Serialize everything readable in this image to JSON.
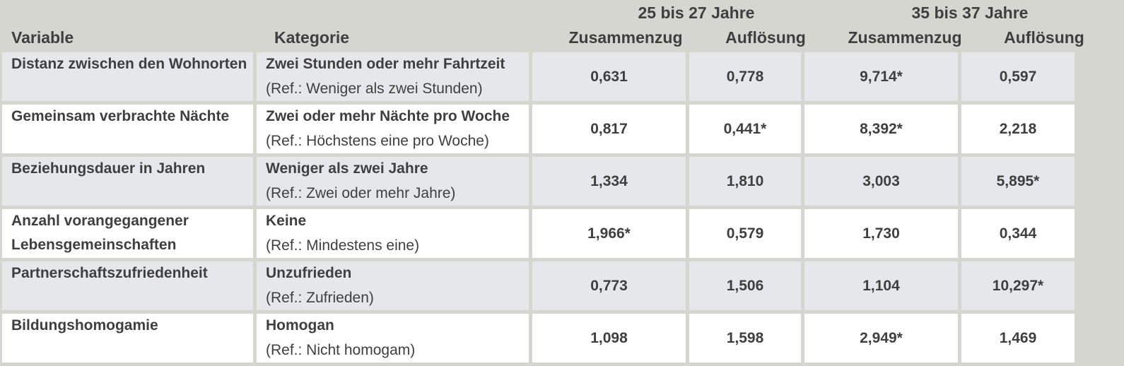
{
  "header": {
    "group1": "25 bis 27 Jahre",
    "group2": "35 bis 37 Jahre",
    "col_variable": "Variable",
    "col_kategorie": "Kategorie",
    "col_zusammenzug_1": "Zusammenzug",
    "col_aufloesung_1": "Auflösung",
    "col_zusammenzug_2": "Zusammenzug",
    "col_aufloesung_2": "Auflösung"
  },
  "rows": [
    {
      "variable_l1": "Distanz zwischen den Wohnorten",
      "variable_l2": "",
      "kategorie": "Zwei Stunden oder mehr Fahrtzeit",
      "ref": "(Ref.: Weniger als zwei Stunden)",
      "v1": "0,631",
      "v2": "0,778",
      "v3": "9,714*",
      "v4": "0,597"
    },
    {
      "variable_l1": "Gemeinsam verbrachte Nächte",
      "variable_l2": "",
      "kategorie": "Zwei oder mehr Nächte pro Woche",
      "ref": "(Ref.: Höchstens eine pro Woche)",
      "v1": "0,817",
      "v2": "0,441*",
      "v3": "8,392*",
      "v4": "2,218"
    },
    {
      "variable_l1": "Beziehungsdauer in Jahren",
      "variable_l2": "",
      "kategorie": "Weniger als zwei Jahre",
      "ref": "(Ref.: Zwei oder mehr Jahre)",
      "v1": "1,334",
      "v2": "1,810",
      "v3": "3,003",
      "v4": "5,895*"
    },
    {
      "variable_l1": "Anzahl vorangegangener",
      "variable_l2": "Lebensgemeinschaften",
      "kategorie": "Keine",
      "ref": "(Ref.: Mindestens eine)",
      "v1": "1,966*",
      "v2": "0,579",
      "v3": "1,730",
      "v4": "0,344"
    },
    {
      "variable_l1": "Partnerschaftszufriedenheit",
      "variable_l2": "",
      "kategorie": "Unzufrieden",
      "ref": "(Ref.: Zufrieden)",
      "v1": "0,773",
      "v2": "1,506",
      "v3": "1,104",
      "v4": "10,297*"
    },
    {
      "variable_l1": "Bildungshomogamie",
      "variable_l2": "",
      "kategorie": "Homogan",
      "ref": "(Ref.: Nicht homogam)",
      "v1": "1,098",
      "v2": "1,598",
      "v3": "2,949*",
      "v4": "1,469"
    }
  ]
}
